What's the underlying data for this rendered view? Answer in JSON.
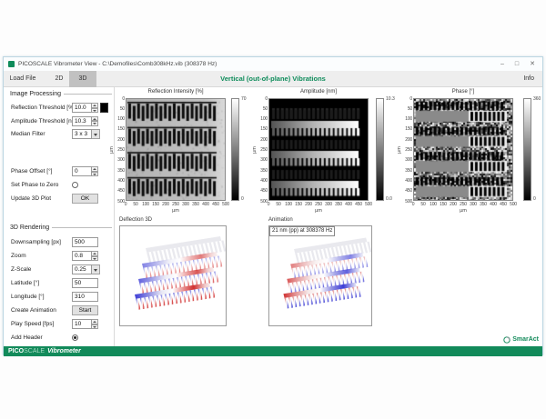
{
  "window": {
    "title": "PICOSCALE Vibrometer View - C:\\Demofiles\\Comb308kHz.vib (308378 Hz)",
    "controls": {
      "minimize": "–",
      "maximize": "□",
      "close": "✕"
    }
  },
  "tabs": [
    {
      "label": "Load File",
      "active": false
    },
    {
      "label": "2D",
      "active": false
    },
    {
      "label": "3D",
      "active": true
    }
  ],
  "header": {
    "title": "Vertical (out-of-plane) Vibrations",
    "info_label": "Info"
  },
  "image_processing": {
    "section_title": "Image Processing",
    "fields": [
      {
        "label": "Reflection Threshold [%]",
        "value": "10.0",
        "type": "spinner",
        "swatch": "#000000"
      },
      {
        "label": "Amplitude Threshold [nm]",
        "value": "10.3",
        "type": "spinner"
      },
      {
        "label": "Median Filter",
        "value": "3 x 3",
        "type": "dropdown"
      },
      {
        "label": "Phase Offset [°]",
        "value": "0",
        "type": "spinner"
      },
      {
        "label": "Set Phase to Zero",
        "type": "radio",
        "checked": false
      },
      {
        "label": "Update 3D Plot",
        "value": "OK",
        "type": "button"
      }
    ]
  },
  "rendering_3d": {
    "section_title": "3D Rendering",
    "fields": [
      {
        "label": "Downsampling [px]",
        "value": "500",
        "type": "input"
      },
      {
        "label": "Zoom",
        "value": "0.8",
        "type": "spinner"
      },
      {
        "label": "Z-Scale",
        "value": "0.25",
        "type": "dropdown"
      },
      {
        "label": "Latitude [°]",
        "value": "50",
        "type": "input"
      },
      {
        "label": "Longitude [°]",
        "value": "310",
        "type": "input"
      },
      {
        "label": "Create Animation",
        "value": "Start",
        "type": "button"
      },
      {
        "label": "Play Speed [fps]",
        "value": "10",
        "type": "spinner"
      },
      {
        "label": "Add Header",
        "type": "radio",
        "checked": true
      }
    ]
  },
  "chart_data": [
    {
      "type": "heatmap",
      "title": "Reflection Intensity [%]",
      "xlabel": "µm",
      "ylabel": "µm",
      "x_range": [
        0,
        500
      ],
      "y_range": [
        0,
        500
      ],
      "x_ticks": [
        0,
        50,
        100,
        150,
        200,
        250,
        300,
        350,
        400,
        450,
        500
      ],
      "y_ticks": [
        0,
        50,
        100,
        150,
        200,
        250,
        300,
        350,
        400,
        450,
        500
      ],
      "colorbar": {
        "min_label": "0",
        "max_label": "70"
      },
      "content": "four horizontal comb-finger bands, dark fingers on light gray background"
    },
    {
      "type": "heatmap",
      "title": "Amplitude [nm]",
      "xlabel": "µm",
      "ylabel": "µm",
      "x_range": [
        0,
        500
      ],
      "y_range": [
        0,
        500
      ],
      "x_ticks": [
        0,
        50,
        100,
        150,
        200,
        250,
        300,
        350,
        400,
        450,
        500
      ],
      "y_ticks": [
        0,
        50,
        100,
        150,
        200,
        250,
        300,
        350,
        400,
        450,
        500
      ],
      "colorbar": {
        "min_label": "0.0",
        "max_label": "10.3"
      },
      "content": "black background, three bright vibrating comb rows with left-to-right amplitude gradient"
    },
    {
      "type": "heatmap",
      "title": "Phase [°]",
      "xlabel": "µm",
      "ylabel": "µm",
      "x_range": [
        0,
        500
      ],
      "y_range": [
        0,
        500
      ],
      "x_ticks": [
        0,
        50,
        100,
        150,
        200,
        250,
        300,
        350,
        400,
        450,
        500
      ],
      "y_ticks": [
        0,
        50,
        100,
        150,
        200,
        250,
        300,
        350,
        400,
        450,
        500
      ],
      "colorbar": {
        "min_label": "0",
        "max_label": "360"
      },
      "content": "random phase noise background, comb bands split into uniform gray (left) and white (right) phase regions"
    },
    {
      "type": "surface_3d",
      "title": "Deflection 3D",
      "content": "perspective view of comb array, deflection colored blue (left/negative) to red (right/positive)"
    },
    {
      "type": "surface_3d",
      "title": "Animation",
      "annotation": "21 nm (pp) at 308378 Hz",
      "content": "perspective view of comb array, opposite phase: red left, blue right"
    }
  ],
  "footer": {
    "brand_bold": "PICO",
    "brand_light": "SCALE",
    "brand_italic": "Vibrometer",
    "logo_text": "SmarAct"
  },
  "colors": {
    "accent_green": "#128a5a",
    "tab_active_bg": "#c1c1c1",
    "swatch_black": "#000000"
  }
}
